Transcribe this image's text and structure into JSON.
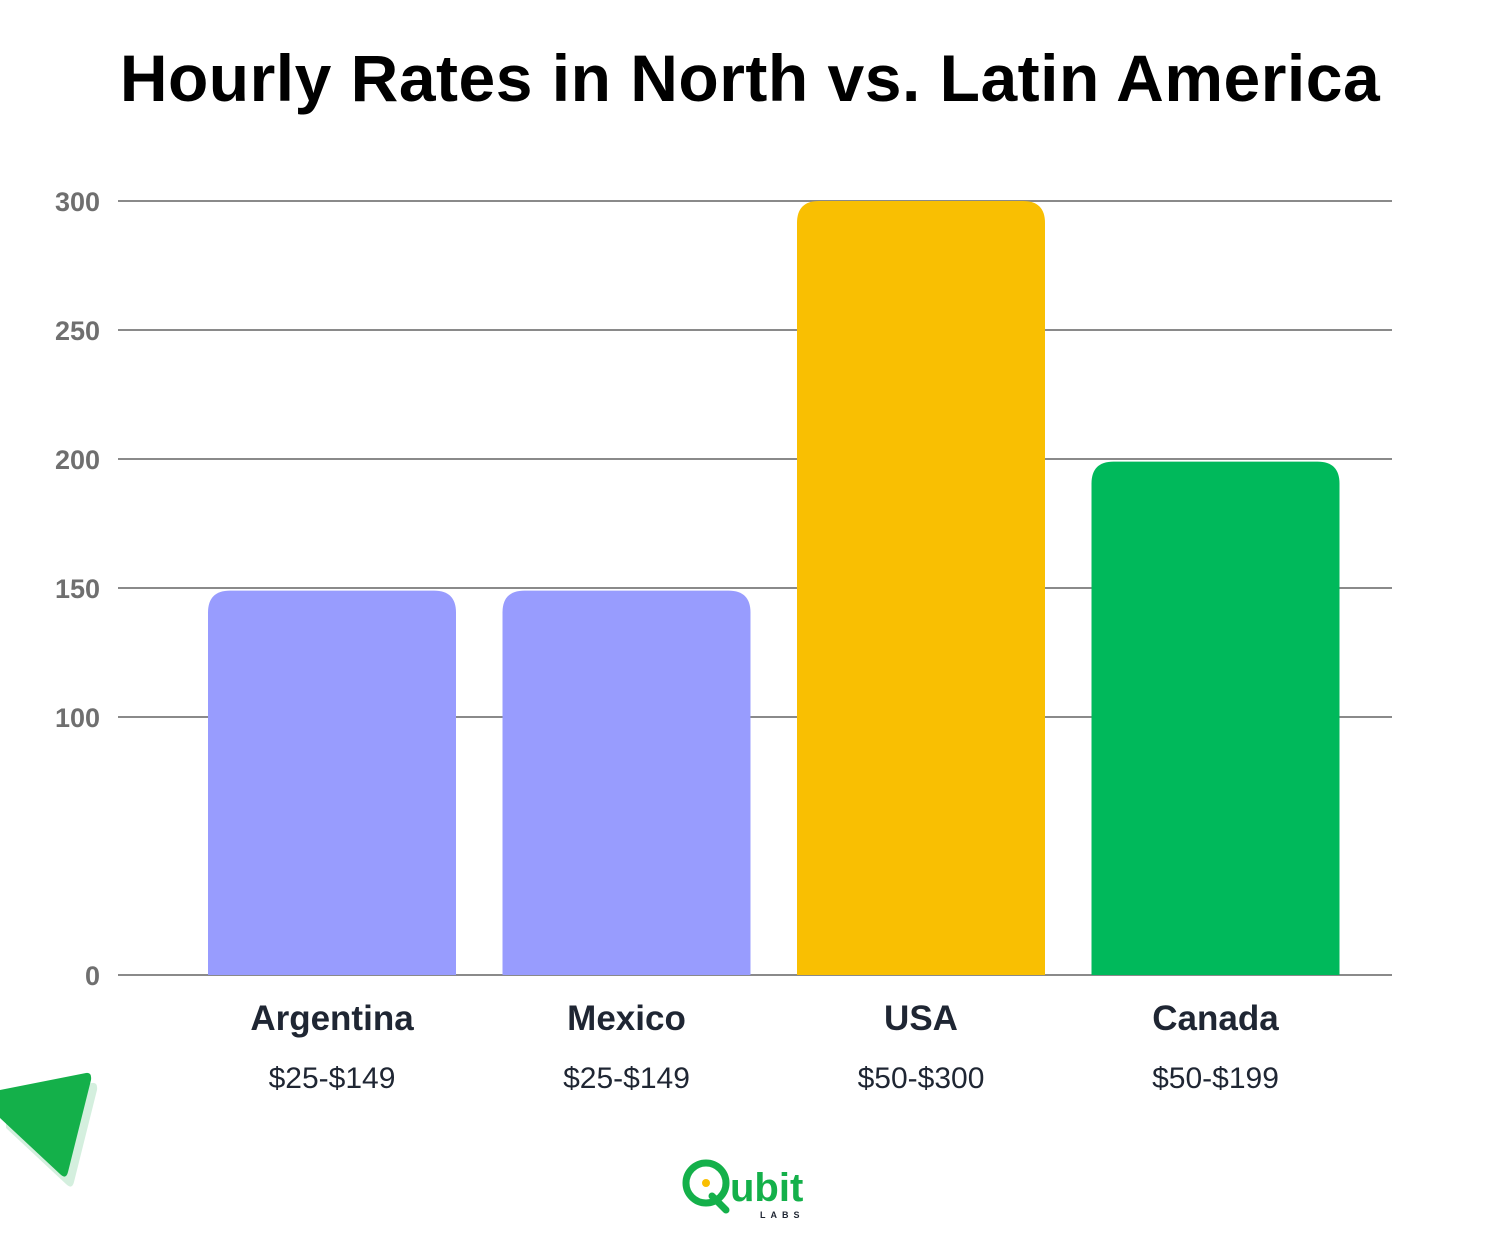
{
  "chart_data": {
    "type": "bar",
    "title": "Hourly Rates in North vs. Latin America",
    "categories": [
      "Argentina",
      "Mexico",
      "USA",
      "Canada"
    ],
    "sublabels": [
      "$25-$149",
      "$25-$149",
      "$50-$300",
      "$50-$199"
    ],
    "values": [
      149,
      149,
      300,
      199
    ],
    "colors": [
      "#989cfe",
      "#989cfe",
      "#f9bf02",
      "#00b95b"
    ],
    "ylim": [
      0,
      300
    ],
    "yticks": [
      0,
      100,
      150,
      200,
      250,
      300
    ],
    "grid": true,
    "xlabel": "",
    "ylabel": ""
  },
  "logo": {
    "brand_lettering": "Qubit",
    "brand_sub_lettering": "LABS",
    "color": "#14b04a"
  }
}
